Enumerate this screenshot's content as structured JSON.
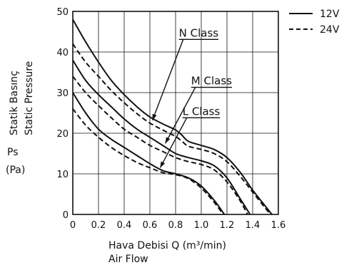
{
  "chart_data": {
    "type": "line",
    "xlim": [
      0,
      1.6
    ],
    "ylim": [
      0,
      50
    ],
    "x_ticks": [
      0,
      0.2,
      0.4,
      0.6,
      0.8,
      1.0,
      1.2,
      1.4,
      1.6
    ],
    "x_tick_labels": [
      "0",
      "0.2",
      "0.4",
      "0.6",
      "0.8",
      "1.0",
      "1.2",
      "1.4",
      "1.6"
    ],
    "y_ticks": [
      0,
      10,
      20,
      30,
      40,
      50
    ],
    "y_tick_labels": [
      "0",
      "10",
      "20",
      "30",
      "40",
      "50"
    ],
    "grid": true,
    "xlabel_line1": "Hava Debisi Q (m³/min)",
    "xlabel_line2": "Air Flow",
    "ylabel_line1": "Statik Basınç",
    "ylabel_line2": "Static Pressure",
    "ylabel_symbol": "Ps",
    "ylabel_unit": "(Pa)",
    "legend": [
      {
        "label": "12V",
        "style": "solid"
      },
      {
        "label": "24V",
        "style": "dashed"
      }
    ],
    "class_labels": [
      {
        "text": "N Class",
        "x": 0.98,
        "y": 43.8,
        "arrow_to_x": 0.62,
        "arrow_to_y": 23.2
      },
      {
        "text": "M Class",
        "x": 1.08,
        "y": 32.0,
        "arrow_to_x": 0.72,
        "arrow_to_y": 17.5
      },
      {
        "text": "L Class",
        "x": 1.0,
        "y": 24.5,
        "arrow_to_x": 0.68,
        "arrow_to_y": 11.5
      }
    ],
    "series": [
      {
        "class": "N",
        "voltage": "12V",
        "style": "solid",
        "x": [
          0,
          0.1,
          0.2,
          0.3,
          0.4,
          0.5,
          0.6,
          0.7,
          0.8,
          0.85,
          0.9,
          1.0,
          1.1,
          1.2,
          1.3,
          1.4,
          1.5,
          1.55
        ],
        "y": [
          48,
          42.5,
          37.5,
          33,
          29.5,
          26.5,
          24,
          22.3,
          20.8,
          19.5,
          18,
          17,
          16,
          14,
          10.5,
          6,
          2,
          0
        ]
      },
      {
        "class": "N",
        "voltage": "24V",
        "style": "dashed",
        "x": [
          0,
          0.1,
          0.2,
          0.3,
          0.4,
          0.5,
          0.6,
          0.7,
          0.8,
          0.85,
          0.9,
          1.0,
          1.1,
          1.2,
          1.3,
          1.4,
          1.5,
          1.54
        ],
        "y": [
          42,
          37.5,
          34,
          30.5,
          27.5,
          24.8,
          22.5,
          20.8,
          19.2,
          18,
          16.8,
          16,
          15,
          13,
          9.5,
          5.5,
          1.5,
          0
        ]
      },
      {
        "class": "M",
        "voltage": "12V",
        "style": "solid",
        "x": [
          0,
          0.1,
          0.2,
          0.3,
          0.4,
          0.5,
          0.6,
          0.7,
          0.8,
          0.9,
          1.0,
          1.1,
          1.2,
          1.3,
          1.38
        ],
        "y": [
          38,
          33,
          29.5,
          26.5,
          23.5,
          21,
          19,
          17,
          15,
          14,
          13.2,
          12,
          9,
          4,
          0
        ]
      },
      {
        "class": "M",
        "voltage": "24V",
        "style": "dashed",
        "x": [
          0,
          0.1,
          0.2,
          0.3,
          0.4,
          0.5,
          0.6,
          0.7,
          0.8,
          0.9,
          1.0,
          1.1,
          1.2,
          1.3,
          1.36
        ],
        "y": [
          34,
          30,
          26.8,
          23.8,
          21,
          19,
          17,
          15.5,
          14,
          13,
          12.3,
          11,
          8,
          3.5,
          0
        ]
      },
      {
        "class": "L",
        "voltage": "12V",
        "style": "solid",
        "x": [
          0,
          0.1,
          0.2,
          0.3,
          0.4,
          0.5,
          0.6,
          0.7,
          0.8,
          0.9,
          1.0,
          1.1,
          1.18
        ],
        "y": [
          30,
          25,
          21,
          18.5,
          16.5,
          14.5,
          12.5,
          10.8,
          10,
          9,
          7,
          3.5,
          0
        ]
      },
      {
        "class": "L",
        "voltage": "24V",
        "style": "dashed",
        "x": [
          0,
          0.1,
          0.2,
          0.3,
          0.4,
          0.5,
          0.6,
          0.7,
          0.8,
          0.9,
          1.0,
          1.1,
          1.17
        ],
        "y": [
          26,
          22,
          19,
          16.5,
          14.5,
          12.8,
          11.5,
          10.3,
          9.8,
          8.8,
          6.5,
          3,
          0
        ]
      }
    ]
  }
}
